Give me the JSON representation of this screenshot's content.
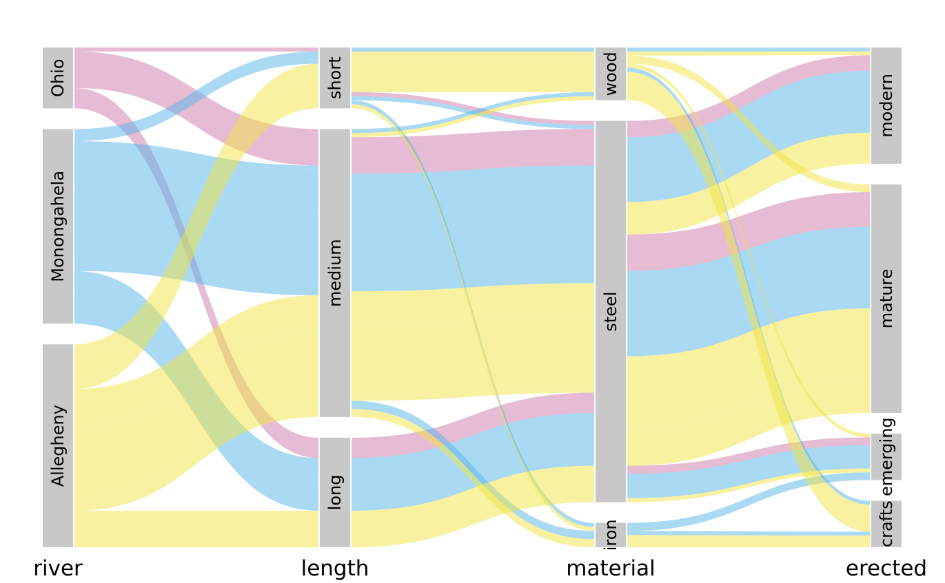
{
  "chart_data": {
    "type": "alluvial",
    "axes": [
      "river",
      "length",
      "material",
      "erected"
    ],
    "categories": {
      "river": [
        "Ohio",
        "Monongahela",
        "Allegheny"
      ],
      "length": [
        "short",
        "medium",
        "long"
      ],
      "material": [
        "wood",
        "steel",
        "iron"
      ],
      "erected": [
        "modern",
        "mature",
        "emerging",
        "crafts"
      ]
    },
    "colors": {
      "Ohio": "#CC79A7",
      "Monongahela": "#56B4E9",
      "Allegheny": "#F0E442",
      "node": "#C8C8C8"
    },
    "flows": [
      {
        "river": "Ohio",
        "length": "short",
        "material": "steel",
        "erected": "emerging",
        "value": 1
      },
      {
        "river": "Ohio",
        "length": "medium",
        "material": "steel",
        "erected": "modern",
        "value": 4
      },
      {
        "river": "Ohio",
        "length": "medium",
        "material": "steel",
        "erected": "mature",
        "value": 5
      },
      {
        "river": "Ohio",
        "length": "long",
        "material": "steel",
        "erected": "emerging",
        "value": 1
      },
      {
        "river": "Ohio",
        "length": "long",
        "material": "steel",
        "erected": "mature",
        "value": 4
      },
      {
        "river": "Monongahela",
        "length": "short",
        "material": "wood",
        "erected": "modern",
        "value": 1
      },
      {
        "river": "Monongahela",
        "length": "short",
        "material": "steel",
        "erected": "modern",
        "value": 1
      },
      {
        "river": "Monongahela",
        "length": "short",
        "material": "iron",
        "erected": "crafts",
        "value": 1
      },
      {
        "river": "Monongahela",
        "length": "medium",
        "material": "wood",
        "erected": "crafts",
        "value": 1
      },
      {
        "river": "Monongahela",
        "length": "medium",
        "material": "steel",
        "erected": "modern",
        "value": 10
      },
      {
        "river": "Monongahela",
        "length": "medium",
        "material": "steel",
        "erected": "mature",
        "value": 19
      },
      {
        "river": "Monongahela",
        "length": "medium",
        "material": "iron",
        "erected": "emerging",
        "value": 2
      },
      {
        "river": "Monongahela",
        "length": "long",
        "material": "steel",
        "erected": "modern",
        "value": 5
      },
      {
        "river": "Monongahela",
        "length": "long",
        "material": "steel",
        "erected": "mature",
        "value": 2
      },
      {
        "river": "Monongahela",
        "length": "long",
        "material": "steel",
        "erected": "emerging",
        "value": 6
      },
      {
        "river": "Allegheny",
        "length": "short",
        "material": "wood",
        "erected": "mature",
        "value": 2
      },
      {
        "river": "Allegheny",
        "length": "short",
        "material": "wood",
        "erected": "emerging",
        "value": 1
      },
      {
        "river": "Allegheny",
        "length": "short",
        "material": "wood",
        "erected": "crafts",
        "value": 7
      },
      {
        "river": "Allegheny",
        "length": "short",
        "material": "iron",
        "erected": "crafts",
        "value": 1
      },
      {
        "river": "Allegheny",
        "length": "medium",
        "material": "wood",
        "erected": "modern",
        "value": 1
      },
      {
        "river": "Allegheny",
        "length": "medium",
        "material": "steel",
        "erected": "modern",
        "value": 8
      },
      {
        "river": "Allegheny",
        "length": "medium",
        "material": "steel",
        "erected": "mature",
        "value": 18
      },
      {
        "river": "Allegheny",
        "length": "medium",
        "material": "steel",
        "erected": "emerging",
        "value": 1
      },
      {
        "river": "Allegheny",
        "length": "medium",
        "material": "iron",
        "erected": "crafts",
        "value": 2
      },
      {
        "river": "Allegheny",
        "length": "long",
        "material": "steel",
        "erected": "mature",
        "value": 9
      }
    ],
    "title": "",
    "legend": "none",
    "grid": false
  }
}
